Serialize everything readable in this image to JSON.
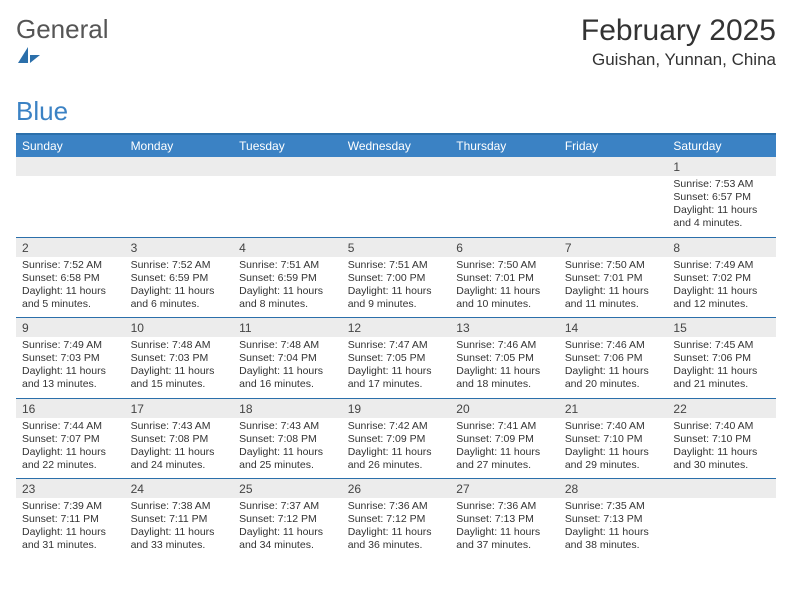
{
  "logo": {
    "word1": "General",
    "word2": "Blue"
  },
  "title": "February 2025",
  "subtitle": "Guishan, Yunnan, China",
  "colors": {
    "header_bar": "#3b82c4",
    "rule": "#2b6faa",
    "daynum_bg": "#ececec",
    "text": "#333333",
    "background": "#ffffff"
  },
  "day_names": [
    "Sunday",
    "Monday",
    "Tuesday",
    "Wednesday",
    "Thursday",
    "Friday",
    "Saturday"
  ],
  "weeks": [
    [
      null,
      null,
      null,
      null,
      null,
      null,
      {
        "n": "1",
        "sr": "Sunrise: 7:53 AM",
        "ss": "Sunset: 6:57 PM",
        "d1": "Daylight: 11 hours",
        "d2": "and 4 minutes."
      }
    ],
    [
      {
        "n": "2",
        "sr": "Sunrise: 7:52 AM",
        "ss": "Sunset: 6:58 PM",
        "d1": "Daylight: 11 hours",
        "d2": "and 5 minutes."
      },
      {
        "n": "3",
        "sr": "Sunrise: 7:52 AM",
        "ss": "Sunset: 6:59 PM",
        "d1": "Daylight: 11 hours",
        "d2": "and 6 minutes."
      },
      {
        "n": "4",
        "sr": "Sunrise: 7:51 AM",
        "ss": "Sunset: 6:59 PM",
        "d1": "Daylight: 11 hours",
        "d2": "and 8 minutes."
      },
      {
        "n": "5",
        "sr": "Sunrise: 7:51 AM",
        "ss": "Sunset: 7:00 PM",
        "d1": "Daylight: 11 hours",
        "d2": "and 9 minutes."
      },
      {
        "n": "6",
        "sr": "Sunrise: 7:50 AM",
        "ss": "Sunset: 7:01 PM",
        "d1": "Daylight: 11 hours",
        "d2": "and 10 minutes."
      },
      {
        "n": "7",
        "sr": "Sunrise: 7:50 AM",
        "ss": "Sunset: 7:01 PM",
        "d1": "Daylight: 11 hours",
        "d2": "and 11 minutes."
      },
      {
        "n": "8",
        "sr": "Sunrise: 7:49 AM",
        "ss": "Sunset: 7:02 PM",
        "d1": "Daylight: 11 hours",
        "d2": "and 12 minutes."
      }
    ],
    [
      {
        "n": "9",
        "sr": "Sunrise: 7:49 AM",
        "ss": "Sunset: 7:03 PM",
        "d1": "Daylight: 11 hours",
        "d2": "and 13 minutes."
      },
      {
        "n": "10",
        "sr": "Sunrise: 7:48 AM",
        "ss": "Sunset: 7:03 PM",
        "d1": "Daylight: 11 hours",
        "d2": "and 15 minutes."
      },
      {
        "n": "11",
        "sr": "Sunrise: 7:48 AM",
        "ss": "Sunset: 7:04 PM",
        "d1": "Daylight: 11 hours",
        "d2": "and 16 minutes."
      },
      {
        "n": "12",
        "sr": "Sunrise: 7:47 AM",
        "ss": "Sunset: 7:05 PM",
        "d1": "Daylight: 11 hours",
        "d2": "and 17 minutes."
      },
      {
        "n": "13",
        "sr": "Sunrise: 7:46 AM",
        "ss": "Sunset: 7:05 PM",
        "d1": "Daylight: 11 hours",
        "d2": "and 18 minutes."
      },
      {
        "n": "14",
        "sr": "Sunrise: 7:46 AM",
        "ss": "Sunset: 7:06 PM",
        "d1": "Daylight: 11 hours",
        "d2": "and 20 minutes."
      },
      {
        "n": "15",
        "sr": "Sunrise: 7:45 AM",
        "ss": "Sunset: 7:06 PM",
        "d1": "Daylight: 11 hours",
        "d2": "and 21 minutes."
      }
    ],
    [
      {
        "n": "16",
        "sr": "Sunrise: 7:44 AM",
        "ss": "Sunset: 7:07 PM",
        "d1": "Daylight: 11 hours",
        "d2": "and 22 minutes."
      },
      {
        "n": "17",
        "sr": "Sunrise: 7:43 AM",
        "ss": "Sunset: 7:08 PM",
        "d1": "Daylight: 11 hours",
        "d2": "and 24 minutes."
      },
      {
        "n": "18",
        "sr": "Sunrise: 7:43 AM",
        "ss": "Sunset: 7:08 PM",
        "d1": "Daylight: 11 hours",
        "d2": "and 25 minutes."
      },
      {
        "n": "19",
        "sr": "Sunrise: 7:42 AM",
        "ss": "Sunset: 7:09 PM",
        "d1": "Daylight: 11 hours",
        "d2": "and 26 minutes."
      },
      {
        "n": "20",
        "sr": "Sunrise: 7:41 AM",
        "ss": "Sunset: 7:09 PM",
        "d1": "Daylight: 11 hours",
        "d2": "and 27 minutes."
      },
      {
        "n": "21",
        "sr": "Sunrise: 7:40 AM",
        "ss": "Sunset: 7:10 PM",
        "d1": "Daylight: 11 hours",
        "d2": "and 29 minutes."
      },
      {
        "n": "22",
        "sr": "Sunrise: 7:40 AM",
        "ss": "Sunset: 7:10 PM",
        "d1": "Daylight: 11 hours",
        "d2": "and 30 minutes."
      }
    ],
    [
      {
        "n": "23",
        "sr": "Sunrise: 7:39 AM",
        "ss": "Sunset: 7:11 PM",
        "d1": "Daylight: 11 hours",
        "d2": "and 31 minutes."
      },
      {
        "n": "24",
        "sr": "Sunrise: 7:38 AM",
        "ss": "Sunset: 7:11 PM",
        "d1": "Daylight: 11 hours",
        "d2": "and 33 minutes."
      },
      {
        "n": "25",
        "sr": "Sunrise: 7:37 AM",
        "ss": "Sunset: 7:12 PM",
        "d1": "Daylight: 11 hours",
        "d2": "and 34 minutes."
      },
      {
        "n": "26",
        "sr": "Sunrise: 7:36 AM",
        "ss": "Sunset: 7:12 PM",
        "d1": "Daylight: 11 hours",
        "d2": "and 36 minutes."
      },
      {
        "n": "27",
        "sr": "Sunrise: 7:36 AM",
        "ss": "Sunset: 7:13 PM",
        "d1": "Daylight: 11 hours",
        "d2": "and 37 minutes."
      },
      {
        "n": "28",
        "sr": "Sunrise: 7:35 AM",
        "ss": "Sunset: 7:13 PM",
        "d1": "Daylight: 11 hours",
        "d2": "and 38 minutes."
      },
      null
    ]
  ]
}
